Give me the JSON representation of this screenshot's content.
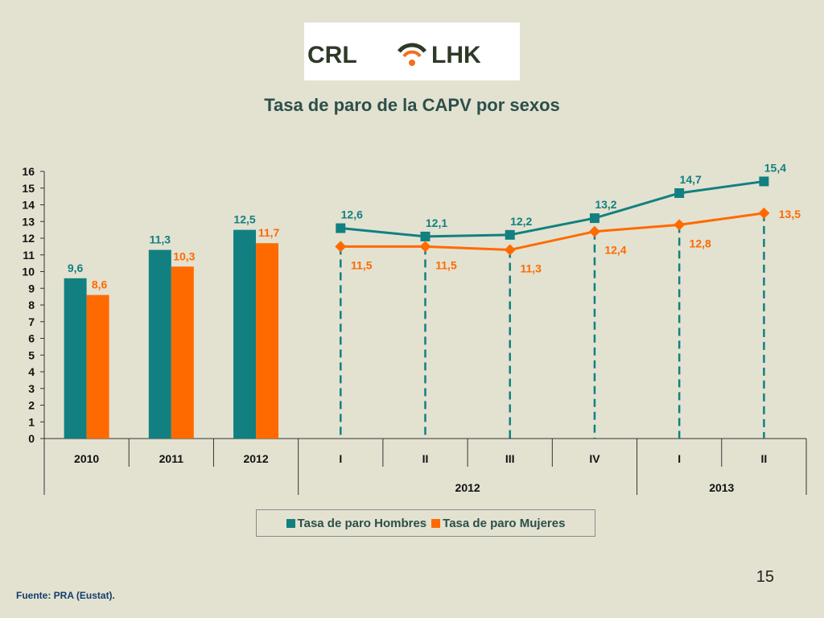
{
  "logo": {
    "text_left": "CRL",
    "text_right": "LHK",
    "color_dark": "#2d3a28",
    "color_accent": "#f07020"
  },
  "title": "Tasa de paro de la CAPV por sexos",
  "legend": {
    "men": "Tasa de paro Hombres",
    "women": "Tasa de paro Mujeres"
  },
  "source": "Fuente: PRA (Eustat).",
  "page_number": "15",
  "colors": {
    "men": "#128080",
    "women": "#ff6a00",
    "background": "#e3e2d1"
  },
  "chart_data": {
    "type": "bar+line",
    "title": "Tasa de paro de la CAPV por sexos",
    "ylim": [
      0,
      16
    ],
    "yticks": [
      "0",
      "1",
      "2",
      "3",
      "4",
      "5",
      "6",
      "7",
      "8",
      "9",
      "10",
      "11",
      "12",
      "13",
      "14",
      "15",
      "16"
    ],
    "annual": {
      "categories": [
        "2010",
        "2011",
        "2012"
      ],
      "series": [
        {
          "name": "Tasa de paro Hombres",
          "values": [
            9.6,
            11.3,
            12.5
          ],
          "labels": [
            "9,6",
            "11,3",
            "12,5"
          ]
        },
        {
          "name": "Tasa de paro Mujeres",
          "values": [
            8.6,
            10.3,
            11.7
          ],
          "labels": [
            "8,6",
            "10,3",
            "11,7"
          ]
        }
      ]
    },
    "quarterly": {
      "categories": [
        "I",
        "II",
        "III",
        "IV",
        "I",
        "II"
      ],
      "groups": [
        {
          "label": "2012",
          "count": 4
        },
        {
          "label": "2013",
          "count": 2
        }
      ],
      "series": [
        {
          "name": "Tasa de paro Hombres",
          "marker": "square",
          "values": [
            12.6,
            12.1,
            12.2,
            13.2,
            14.7,
            15.4
          ],
          "labels": [
            "12,6",
            "12,1",
            "12,2",
            "13,2",
            "14,7",
            "15,4"
          ]
        },
        {
          "name": "Tasa de paro Mujeres",
          "marker": "diamond",
          "values": [
            11.5,
            11.5,
            11.3,
            12.4,
            12.8,
            13.5
          ],
          "labels": [
            "11,5",
            "11,5",
            "11,3",
            "12,4",
            "12,8",
            "13,5"
          ]
        }
      ]
    },
    "legend_position": "bottom",
    "grid": false
  }
}
